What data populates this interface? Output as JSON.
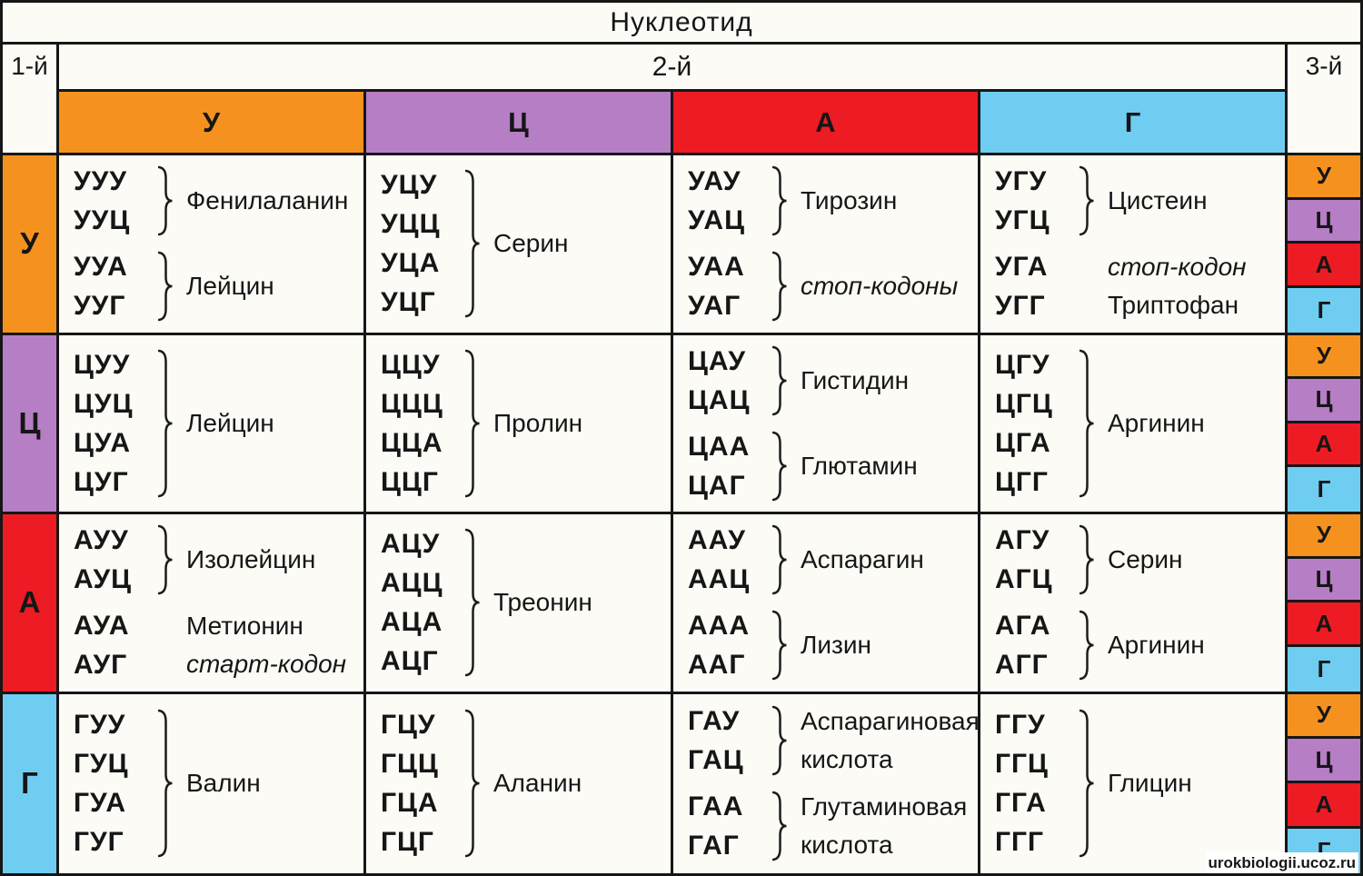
{
  "title": "Нуклеотид",
  "axis": {
    "first": "1-й",
    "second": "2-й",
    "third": "3-й"
  },
  "watermark": "urokbiologii.ucoz.ru",
  "palette": {
    "У": "#f5921f",
    "Ц": "#b67ec5",
    "А": "#ed1b24",
    "Г": "#6fcdf2"
  },
  "second_letters": [
    "У",
    "Ц",
    "А",
    "Г"
  ],
  "third_letters": [
    "У",
    "Ц",
    "А",
    "Г"
  ],
  "rows": [
    {
      "first_letter": "У",
      "cells": [
        {
          "groups": [
            {
              "codons": [
                "УУУ",
                "УУЦ"
              ],
              "bracket": true,
              "labels": [
                {
                  "text": "Фенилаланин",
                  "italic": false
                }
              ]
            },
            {
              "codons": [
                "УУА",
                "УУГ"
              ],
              "bracket": true,
              "labels": [
                {
                  "text": "Лейцин",
                  "italic": false
                }
              ]
            }
          ]
        },
        {
          "groups": [
            {
              "codons": [
                "УЦУ",
                "УЦЦ",
                "УЦА",
                "УЦГ"
              ],
              "bracket": true,
              "labels": [
                {
                  "text": "Серин",
                  "italic": false
                }
              ]
            }
          ]
        },
        {
          "groups": [
            {
              "codons": [
                "УАУ",
                "УАЦ"
              ],
              "bracket": true,
              "labels": [
                {
                  "text": "Тирозин",
                  "italic": false
                }
              ]
            },
            {
              "codons": [
                "УАА",
                "УАГ"
              ],
              "bracket": true,
              "labels": [
                {
                  "text": "стоп-кодоны",
                  "italic": true
                }
              ]
            }
          ]
        },
        {
          "groups": [
            {
              "codons": [
                "УГУ",
                "УГЦ"
              ],
              "bracket": true,
              "labels": [
                {
                  "text": "Цистеин",
                  "italic": false
                }
              ]
            },
            {
              "codons": [
                "УГА",
                "УГГ"
              ],
              "bracket": false,
              "labels": [
                {
                  "text": "стоп-кодон",
                  "italic": true
                },
                {
                  "text": "Триптофан",
                  "italic": false
                }
              ]
            }
          ]
        }
      ]
    },
    {
      "first_letter": "Ц",
      "cells": [
        {
          "groups": [
            {
              "codons": [
                "ЦУУ",
                "ЦУЦ",
                "ЦУА",
                "ЦУГ"
              ],
              "bracket": true,
              "labels": [
                {
                  "text": "Лейцин",
                  "italic": false
                }
              ]
            }
          ]
        },
        {
          "groups": [
            {
              "codons": [
                "ЦЦУ",
                "ЦЦЦ",
                "ЦЦА",
                "ЦЦГ"
              ],
              "bracket": true,
              "labels": [
                {
                  "text": "Пролин",
                  "italic": false
                }
              ]
            }
          ]
        },
        {
          "groups": [
            {
              "codons": [
                "ЦАУ",
                "ЦАЦ"
              ],
              "bracket": true,
              "labels": [
                {
                  "text": "Гистидин",
                  "italic": false
                }
              ]
            },
            {
              "codons": [
                "ЦАА",
                "ЦАГ"
              ],
              "bracket": true,
              "labels": [
                {
                  "text": "Глютамин",
                  "italic": false
                }
              ]
            }
          ]
        },
        {
          "groups": [
            {
              "codons": [
                "ЦГУ",
                "ЦГЦ",
                "ЦГА",
                "ЦГГ"
              ],
              "bracket": true,
              "labels": [
                {
                  "text": "Аргинин",
                  "italic": false
                }
              ]
            }
          ]
        }
      ]
    },
    {
      "first_letter": "А",
      "cells": [
        {
          "groups": [
            {
              "codons": [
                "АУУ",
                "АУЦ"
              ],
              "bracket": true,
              "labels": [
                {
                  "text": "Изолейцин",
                  "italic": false
                }
              ]
            },
            {
              "codons": [
                "АУА",
                "АУГ"
              ],
              "bracket": false,
              "labels": [
                {
                  "text": "Метионин",
                  "italic": false
                },
                {
                  "text": "старт-кодон",
                  "italic": true
                }
              ]
            }
          ]
        },
        {
          "groups": [
            {
              "codons": [
                "АЦУ",
                "АЦЦ",
                "АЦА",
                "АЦГ"
              ],
              "bracket": true,
              "labels": [
                {
                  "text": "Треонин",
                  "italic": false
                }
              ]
            }
          ]
        },
        {
          "groups": [
            {
              "codons": [
                "ААУ",
                "ААЦ"
              ],
              "bracket": true,
              "labels": [
                {
                  "text": "Аспарагин",
                  "italic": false
                }
              ]
            },
            {
              "codons": [
                "ААА",
                "ААГ"
              ],
              "bracket": true,
              "labels": [
                {
                  "text": "Лизин",
                  "italic": false
                }
              ]
            }
          ]
        },
        {
          "groups": [
            {
              "codons": [
                "АГУ",
                "АГЦ"
              ],
              "bracket": true,
              "labels": [
                {
                  "text": "Серин",
                  "italic": false
                }
              ]
            },
            {
              "codons": [
                "АГА",
                "АГГ"
              ],
              "bracket": true,
              "labels": [
                {
                  "text": "Аргинин",
                  "italic": false
                }
              ]
            }
          ]
        }
      ]
    },
    {
      "first_letter": "Г",
      "cells": [
        {
          "groups": [
            {
              "codons": [
                "ГУУ",
                "ГУЦ",
                "ГУА",
                "ГУГ"
              ],
              "bracket": true,
              "labels": [
                {
                  "text": "Валин",
                  "italic": false
                }
              ]
            }
          ]
        },
        {
          "groups": [
            {
              "codons": [
                "ГЦУ",
                "ГЦЦ",
                "ГЦА",
                "ГЦГ"
              ],
              "bracket": true,
              "labels": [
                {
                  "text": "Аланин",
                  "italic": false
                }
              ]
            }
          ]
        },
        {
          "groups": [
            {
              "codons": [
                "ГАУ",
                "ГАЦ"
              ],
              "bracket": true,
              "labels": [
                {
                  "text": "Аспарагиновая",
                  "italic": false
                },
                {
                  "text": "кислота",
                  "italic": false
                }
              ]
            },
            {
              "codons": [
                "ГАА",
                "ГАГ"
              ],
              "bracket": true,
              "labels": [
                {
                  "text": "Глутаминовая",
                  "italic": false
                },
                {
                  "text": "кислота",
                  "italic": false
                }
              ]
            }
          ]
        },
        {
          "groups": [
            {
              "codons": [
                "ГГУ",
                "ГГЦ",
                "ГГА",
                "ГГГ"
              ],
              "bracket": true,
              "labels": [
                {
                  "text": "Глицин",
                  "italic": false
                }
              ]
            }
          ]
        }
      ]
    }
  ]
}
